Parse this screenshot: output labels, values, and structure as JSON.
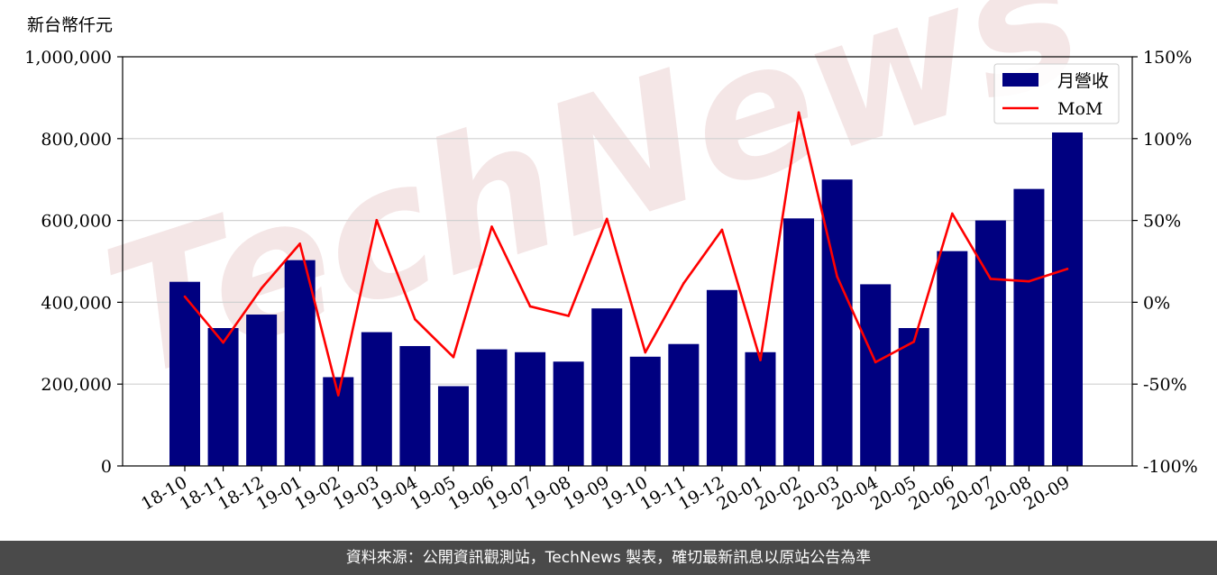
{
  "chart_data": {
    "type": "bar",
    "y_unit_label": "新台幣仟元",
    "categories": [
      "18-10",
      "18-11",
      "18-12",
      "19-01",
      "19-02",
      "19-03",
      "19-04",
      "19-05",
      "19-06",
      "19-07",
      "19-08",
      "19-09",
      "19-10",
      "19-11",
      "19-12",
      "20-01",
      "20-02",
      "20-03",
      "20-04",
      "20-05",
      "20-06",
      "20-07",
      "20-08",
      "20-09"
    ],
    "series": [
      {
        "name": "月營收",
        "axis": "left",
        "color": "#000080",
        "values": [
          450000,
          337000,
          370000,
          503000,
          217000,
          327000,
          293000,
          195000,
          285000,
          278000,
          255000,
          385000,
          267000,
          298000,
          430000,
          278000,
          605000,
          700000,
          444000,
          337000,
          525000,
          600000,
          677000,
          815000
        ]
      },
      {
        "name": "MoM",
        "axis": "right",
        "color": "#ff0000",
        "unit": "%",
        "values": [
          3.5,
          -24.6,
          8.6,
          35.8,
          -56.8,
          50.2,
          -10.4,
          -33.5,
          46.2,
          -2.5,
          -8.3,
          51.0,
          -30.6,
          11.6,
          44.3,
          -35.3,
          116.0,
          15.7,
          -36.6,
          -24.1,
          54.2,
          14.3,
          12.8,
          20.4
        ]
      }
    ],
    "left_axis": {
      "min": 0,
      "max": 1000000,
      "ticks": [
        0,
        200000,
        400000,
        600000,
        800000,
        1000000
      ],
      "tick_labels": [
        "0",
        "200,000",
        "400,000",
        "600,000",
        "800,000",
        "1,000,000"
      ]
    },
    "right_axis": {
      "min": -100,
      "max": 150,
      "ticks": [
        -100,
        -50,
        0,
        50,
        100,
        150
      ],
      "tick_labels": [
        "-100%",
        "-50%",
        "0%",
        "50%",
        "100%",
        "150%"
      ]
    },
    "grid": true,
    "legend_position": "top-right"
  },
  "watermark": "TechNews",
  "footer": {
    "text": "資料來源：公開資訊觀測站，TechNews 製表，確切最新訊息以原站公告為準"
  }
}
